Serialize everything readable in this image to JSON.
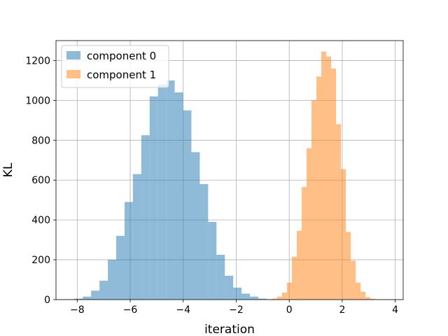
{
  "chart_data": {
    "type": "bar",
    "subtype": "histogram",
    "title": "",
    "xlabel": "iteration",
    "ylabel": "KL",
    "xlim": [
      -8.8,
      4.3
    ],
    "ylim": [
      0,
      1300
    ],
    "xticks": [
      -8,
      -6,
      -4,
      -2,
      0,
      2,
      4
    ],
    "yticks": [
      0,
      200,
      400,
      600,
      800,
      1000,
      1200
    ],
    "xtick_labels": [
      "−8",
      "−6",
      "−4",
      "−2",
      "0",
      "2",
      "4"
    ],
    "ytick_labels": [
      "0",
      "200",
      "400",
      "600",
      "800",
      "1000",
      "1200"
    ],
    "grid": true,
    "legend_position": "top-left",
    "series": [
      {
        "name": "component 0",
        "color": "#1f77b4",
        "opacity": 0.5,
        "bin_start": -8.42,
        "bin_width": 0.3153,
        "values": [
          2,
          5,
          15,
          45,
          95,
          200,
          320,
          490,
          630,
          825,
          1020,
          1080,
          1100,
          1040,
          950,
          740,
          580,
          390,
          225,
          120,
          60,
          30,
          15,
          5,
          2,
          1
        ]
      },
      {
        "name": "component 1",
        "color": "#ff7f0e",
        "opacity": 0.5,
        "bin_start": -0.83,
        "bin_width": 0.1855,
        "values": [
          1,
          5,
          15,
          35,
          85,
          215,
          345,
          565,
          760,
          1000,
          1120,
          1245,
          1220,
          1160,
          880,
          655,
          340,
          195,
          85,
          40,
          12,
          4,
          1
        ]
      }
    ]
  }
}
